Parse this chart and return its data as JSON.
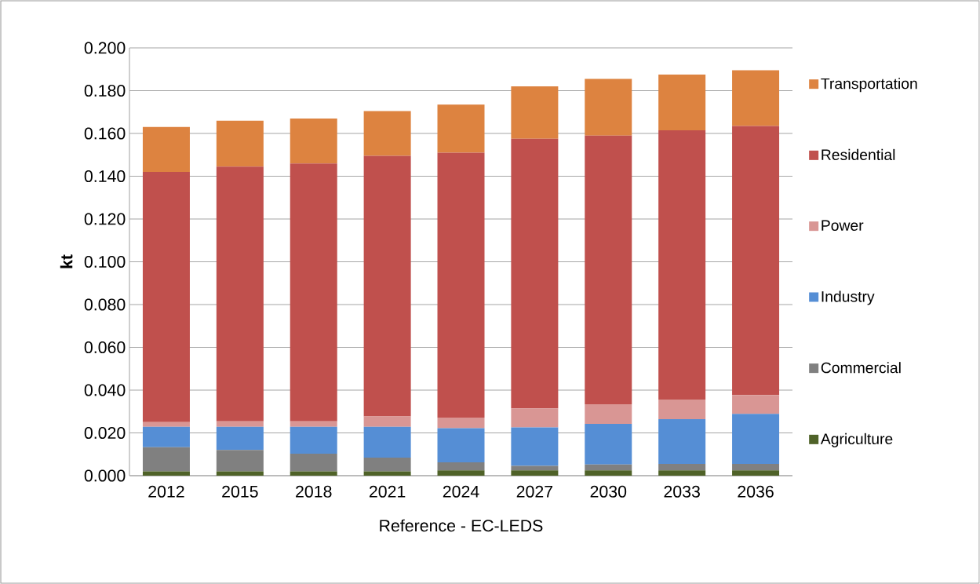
{
  "chart_data": {
    "type": "bar",
    "stacked": true,
    "ylabel": "kt",
    "xlabel": "Reference - EC-LEDS",
    "categories": [
      "2012",
      "2015",
      "2018",
      "2021",
      "2024",
      "2027",
      "2030",
      "2033",
      "2036"
    ],
    "series": [
      {
        "name": "Agriculture",
        "color": "#4f6228",
        "values": [
          0.002,
          0.002,
          0.002,
          0.002,
          0.0025,
          0.0025,
          0.0025,
          0.0025,
          0.0025
        ]
      },
      {
        "name": "Commercial",
        "color": "#808080",
        "values": [
          0.0113,
          0.01,
          0.0083,
          0.0064,
          0.0037,
          0.0021,
          0.0027,
          0.003,
          0.003
        ]
      },
      {
        "name": "Industry",
        "color": "#558ed5",
        "values": [
          0.0095,
          0.0108,
          0.0125,
          0.0144,
          0.016,
          0.018,
          0.019,
          0.0209,
          0.0234
        ]
      },
      {
        "name": "Power",
        "color": "#d99694",
        "values": [
          0.0022,
          0.0026,
          0.0026,
          0.0049,
          0.005,
          0.0089,
          0.0092,
          0.0092,
          0.0088
        ]
      },
      {
        "name": "Residential",
        "color": "#c0504d",
        "values": [
          0.117,
          0.1191,
          0.1206,
          0.1218,
          0.1238,
          0.126,
          0.1256,
          0.1259,
          0.1258
        ]
      },
      {
        "name": "Transportation",
        "color": "#dd8340",
        "values": [
          0.021,
          0.0215,
          0.021,
          0.021,
          0.0225,
          0.0245,
          0.0265,
          0.026,
          0.026
        ]
      }
    ],
    "ylim": [
      0,
      0.2
    ],
    "yticks": [
      {
        "value": 0,
        "label": "0.000"
      },
      {
        "value": 0.02,
        "label": "0.020"
      },
      {
        "value": 0.04,
        "label": "0.040"
      },
      {
        "value": 0.06,
        "label": "0.060"
      },
      {
        "value": 0.08,
        "label": "0.080"
      },
      {
        "value": 0.1,
        "label": "0.100"
      },
      {
        "value": 0.12,
        "label": "0.120"
      },
      {
        "value": 0.14,
        "label": "0.140"
      },
      {
        "value": 0.16,
        "label": "0.160"
      },
      {
        "value": 0.18,
        "label": "0.180"
      },
      {
        "value": 0.2,
        "label": "0.200"
      }
    ],
    "grid": "y",
    "legend": "right"
  }
}
